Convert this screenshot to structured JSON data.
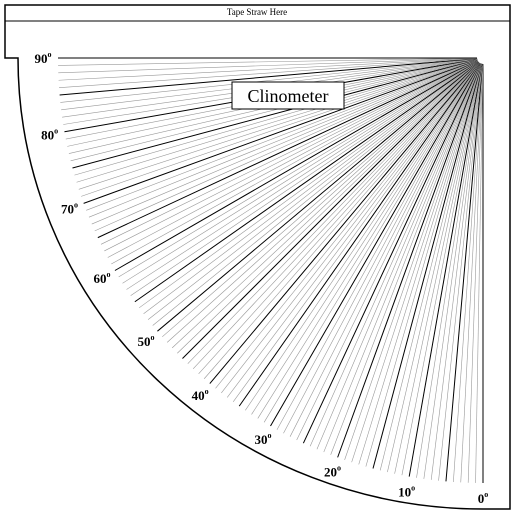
{
  "header": {
    "text": "Tape Straw Here"
  },
  "title": "Clinometer",
  "degree_mark": "o",
  "angle_labels": [
    "0",
    "10",
    "20",
    "30",
    "40",
    "50",
    "60",
    "70",
    "80",
    "90"
  ]
}
